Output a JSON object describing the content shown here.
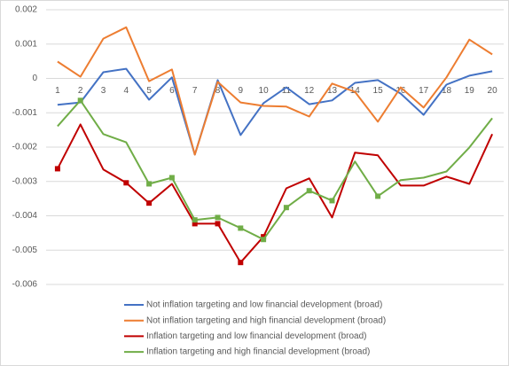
{
  "chart_data": {
    "type": "line",
    "categories": [
      "1",
      "2",
      "3",
      "4",
      "5",
      "6",
      "7",
      "8",
      "9",
      "10",
      "11",
      "12",
      "13",
      "14",
      "15",
      "16",
      "17",
      "18",
      "19",
      "20"
    ],
    "ylim": [
      -0.006,
      0.002
    ],
    "yticks": [
      0.002,
      0.001,
      0,
      -0.001,
      -0.002,
      -0.003,
      -0.004,
      -0.005,
      -0.006
    ],
    "grid": true,
    "legend": "bottom",
    "series": [
      {
        "name": "Not inflation targeting and  low financial development (broad)",
        "color": "#4472c4",
        "markers": [],
        "values": [
          -0.00077,
          -0.0007,
          0.00018,
          0.00028,
          -0.00062,
          3e-05,
          -0.00222,
          -5e-05,
          -0.00165,
          -0.00072,
          -0.00026,
          -0.00075,
          -0.00064,
          -0.00013,
          -5e-05,
          -0.00044,
          -0.00106,
          -0.00018,
          8e-05,
          0.00021
        ]
      },
      {
        "name": "Not inflation targeting and  high financial development (broad)",
        "color": "#ed7d31",
        "markers": [],
        "values": [
          0.00049,
          5e-05,
          0.00116,
          0.00149,
          -8e-05,
          0.00026,
          -0.00222,
          -0.0001,
          -0.0007,
          -0.0008,
          -0.00082,
          -0.00111,
          -0.00015,
          -0.00039,
          -0.00126,
          -0.00026,
          -0.00085,
          3e-05,
          0.00113,
          0.0007
        ]
      },
      {
        "name": "Inflation targeting and  low financial development (broad)",
        "color": "#c00000",
        "markers": [
          0,
          3,
          4,
          6,
          7,
          8,
          9
        ],
        "values": [
          -0.00263,
          -0.00134,
          -0.00265,
          -0.00304,
          -0.00363,
          -0.00307,
          -0.00423,
          -0.00423,
          -0.00536,
          -0.00461,
          -0.0032,
          -0.00291,
          -0.00405,
          -0.00216,
          -0.00224,
          -0.00312,
          -0.00312,
          -0.00286,
          -0.00307,
          -0.00162
        ]
      },
      {
        "name": "Inflation targeting and  high financial development (broad)",
        "color": "#70ad47",
        "markers": [
          1,
          4,
          5,
          6,
          7,
          8,
          9,
          10,
          11,
          12,
          14
        ],
        "values": [
          -0.00139,
          -0.00064,
          -0.00162,
          -0.00186,
          -0.00307,
          -0.00289,
          -0.00412,
          -0.00405,
          -0.00436,
          -0.00469,
          -0.00376,
          -0.00327,
          -0.00356,
          -0.00242,
          -0.00343,
          -0.00296,
          -0.00289,
          -0.00271,
          -0.00201,
          -0.00116
        ]
      }
    ]
  }
}
